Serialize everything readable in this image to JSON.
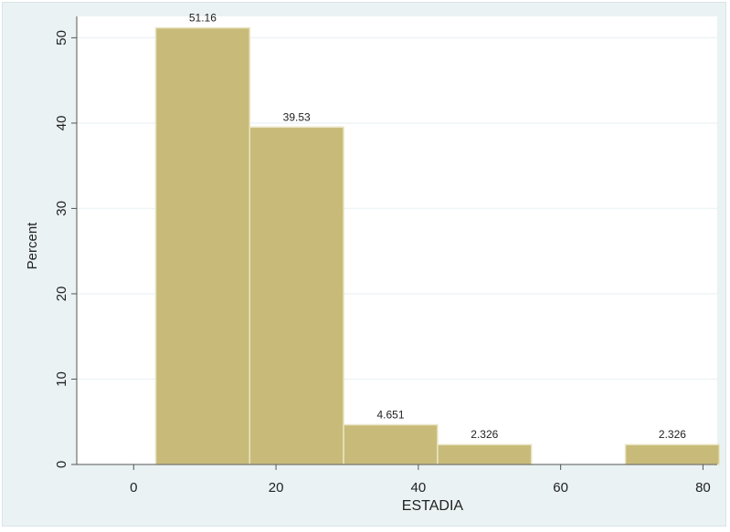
{
  "chart_data": {
    "type": "bar",
    "histogram": true,
    "xlabel": "ESTADIA",
    "ylabel": "Percent",
    "xlim": [
      -8,
      82
    ],
    "ylim": [
      0,
      52.5
    ],
    "x_ticks": [
      0,
      20,
      40,
      60,
      80
    ],
    "y_ticks": [
      0,
      10,
      20,
      30,
      40,
      50
    ],
    "grid": true,
    "bins": [
      {
        "start": 3.1,
        "end": 16.3,
        "value": 51.16,
        "label": "51.16"
      },
      {
        "start": 16.3,
        "end": 29.5,
        "value": 39.53,
        "label": "39.53"
      },
      {
        "start": 29.5,
        "end": 42.7,
        "value": 4.651,
        "label": "4.651"
      },
      {
        "start": 42.7,
        "end": 55.9,
        "value": 2.326,
        "label": "2.326"
      },
      {
        "start": 55.9,
        "end": 69.1,
        "value": 0,
        "label": ""
      },
      {
        "start": 69.1,
        "end": 82.3,
        "value": 2.326,
        "label": "2.326"
      }
    ],
    "colors": {
      "bar_fill": "#c8bb79",
      "bar_stroke": "#eae4c4",
      "plot_bg": "#ffffff",
      "outer_bg": "#eaf2f3",
      "grid": "#eef3f5",
      "axis": "#555555"
    }
  }
}
